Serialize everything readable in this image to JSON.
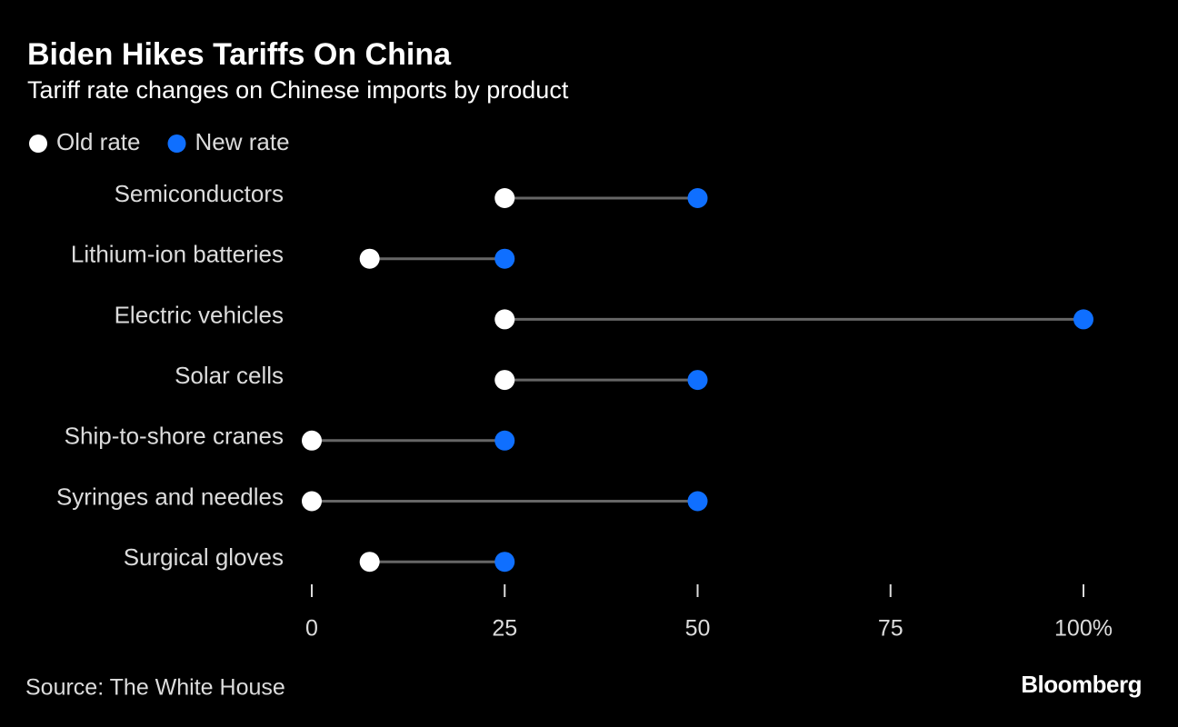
{
  "chart_data": {
    "type": "dumbbell",
    "title": "Biden Hikes Tariffs On China",
    "subtitle": "Tariff rate changes on Chinese imports by product",
    "categories": [
      "Semiconductors",
      "Lithium-ion batteries",
      "Electric vehicles",
      "Solar cells",
      "Ship-to-shore cranes",
      "Syringes and needles",
      "Surgical gloves"
    ],
    "series": [
      {
        "name": "Old rate",
        "color": "#ffffff",
        "values": [
          25,
          7.5,
          25,
          25,
          0,
          0,
          7.5
        ]
      },
      {
        "name": "New rate",
        "color": "#0f6fff",
        "values": [
          50,
          25,
          100,
          50,
          25,
          50,
          25
        ]
      }
    ],
    "connector_color": "#666666",
    "xlim": [
      0,
      100
    ],
    "xticks": [
      0,
      25,
      50,
      75,
      {
        "value": 100,
        "label": "100%"
      }
    ],
    "source": "Source: The White House",
    "credit": "Bloomberg"
  }
}
